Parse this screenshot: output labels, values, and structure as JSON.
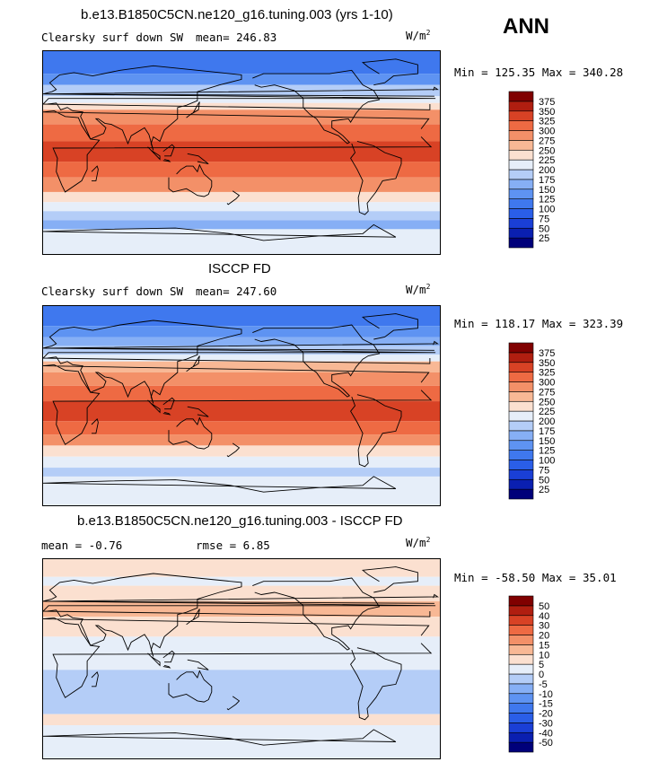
{
  "season": "ANN",
  "units": "W/m",
  "units_sup": "2",
  "panels": [
    {
      "title": "b.e13.B1850C5CN.ne120_g16.tuning.003 (yrs 1-10)",
      "var_label": "Clearsky surf down SW",
      "stats_text": "mean= 246.83",
      "minmax": "Min = 125.35 Max = 340.28"
    },
    {
      "title": "ISCCP FD",
      "var_label": "Clearsky surf down SW",
      "stats_text": "mean= 247.60",
      "minmax": "Min = 118.17 Max = 323.39"
    },
    {
      "title": "b.e13.B1850C5CN.ne120_g16.tuning.003 - ISCCP FD",
      "var_label": "",
      "stats_text": "mean =  -0.76",
      "rmse_text": "rmse =   6.85",
      "minmax": "Min = -58.50 Max =  35.01"
    }
  ],
  "chart_data": [
    {
      "type": "heatmap",
      "title": "b.e13.B1850C5CN.ne120_g16.tuning.003 (yrs 1-10)",
      "variable": "Clearsky surf down SW",
      "mean": 246.83,
      "min": 125.35,
      "max": 340.28,
      "colorbar_levels": [
        25,
        50,
        75,
        100,
        125,
        150,
        175,
        200,
        225,
        250,
        275,
        300,
        325,
        350,
        375
      ],
      "colorbar_colors": [
        "#00007a",
        "#0a1fb0",
        "#1a3fd6",
        "#2a5ee8",
        "#3f78ee",
        "#5e93f2",
        "#86aff5",
        "#b4cdf7",
        "#e6eef9",
        "#fbe0d0",
        "#f8b895",
        "#f39068",
        "#ee6a43",
        "#d84225",
        "#b01e10",
        "#800000"
      ],
      "zonal_bands": [
        {
          "lat_top": 90,
          "level_index": 4
        },
        {
          "lat_top": 70,
          "level_index": 5
        },
        {
          "lat_top": 60,
          "level_index": 7
        },
        {
          "lat_top": 50,
          "level_index": 8
        },
        {
          "lat_top": 44,
          "level_index": 9
        },
        {
          "lat_top": 38,
          "level_index": 11
        },
        {
          "lat_top": 25,
          "level_index": 12
        },
        {
          "lat_top": 10,
          "level_index": 13
        },
        {
          "lat_top": -8,
          "level_index": 12
        },
        {
          "lat_top": -22,
          "level_index": 11
        },
        {
          "lat_top": -35,
          "level_index": 9
        },
        {
          "lat_top": -44,
          "level_index": 8
        },
        {
          "lat_top": -52,
          "level_index": 7
        },
        {
          "lat_top": -60,
          "level_index": 6
        },
        {
          "lat_top": -68,
          "level_index": 8
        }
      ]
    },
    {
      "type": "heatmap",
      "title": "ISCCP FD",
      "variable": "Clearsky surf down SW",
      "mean": 247.6,
      "min": 118.17,
      "max": 323.39,
      "colorbar_levels": [
        25,
        50,
        75,
        100,
        125,
        150,
        175,
        200,
        225,
        250,
        275,
        300,
        325,
        350,
        375
      ],
      "colorbar_colors": [
        "#00007a",
        "#0a1fb0",
        "#1a3fd6",
        "#2a5ee8",
        "#3f78ee",
        "#5e93f2",
        "#86aff5",
        "#b4cdf7",
        "#e6eef9",
        "#fbe0d0",
        "#f8b895",
        "#f39068",
        "#ee6a43",
        "#d84225",
        "#b01e10",
        "#800000"
      ],
      "zonal_bands": [
        {
          "lat_top": 90,
          "level_index": 4
        },
        {
          "lat_top": 72,
          "level_index": 5
        },
        {
          "lat_top": 62,
          "level_index": 6
        },
        {
          "lat_top": 54,
          "level_index": 7
        },
        {
          "lat_top": 46,
          "level_index": 8
        },
        {
          "lat_top": 40,
          "level_index": 10
        },
        {
          "lat_top": 30,
          "level_index": 11
        },
        {
          "lat_top": 18,
          "level_index": 12
        },
        {
          "lat_top": 4,
          "level_index": 13
        },
        {
          "lat_top": -14,
          "level_index": 12
        },
        {
          "lat_top": -26,
          "level_index": 11
        },
        {
          "lat_top": -36,
          "level_index": 9
        },
        {
          "lat_top": -46,
          "level_index": 8
        },
        {
          "lat_top": -56,
          "level_index": 7
        },
        {
          "lat_top": -64,
          "level_index": 8
        }
      ]
    },
    {
      "type": "heatmap",
      "title": "b.e13.B1850C5CN.ne120_g16.tuning.003 - ISCCP FD",
      "mean": -0.76,
      "rmse": 6.85,
      "min": -58.5,
      "max": 35.01,
      "colorbar_levels": [
        -50,
        -40,
        -30,
        -20,
        -15,
        -10,
        -5,
        0,
        5,
        10,
        15,
        20,
        30,
        40,
        50
      ],
      "colorbar_colors": [
        "#00007a",
        "#0a1fb0",
        "#1a3fd6",
        "#2a5ee8",
        "#3f78ee",
        "#5e93f2",
        "#86aff5",
        "#b4cdf7",
        "#e6eef9",
        "#fbe0d0",
        "#f8b895",
        "#f39068",
        "#ee6a43",
        "#d84225",
        "#b01e10",
        "#800000"
      ],
      "zonal_bands": [
        {
          "lat_top": 90,
          "level_index": 9
        },
        {
          "lat_top": 74,
          "level_index": 8
        },
        {
          "lat_top": 66,
          "level_index": 9
        },
        {
          "lat_top": 52,
          "level_index": 10
        },
        {
          "lat_top": 38,
          "level_index": 9
        },
        {
          "lat_top": 20,
          "level_index": 8
        },
        {
          "lat_top": 4,
          "level_index": 8
        },
        {
          "lat_top": -10,
          "level_index": 7
        },
        {
          "lat_top": -30,
          "level_index": 7
        },
        {
          "lat_top": -50,
          "level_index": 9
        },
        {
          "lat_top": -60,
          "level_index": 8
        }
      ]
    }
  ]
}
